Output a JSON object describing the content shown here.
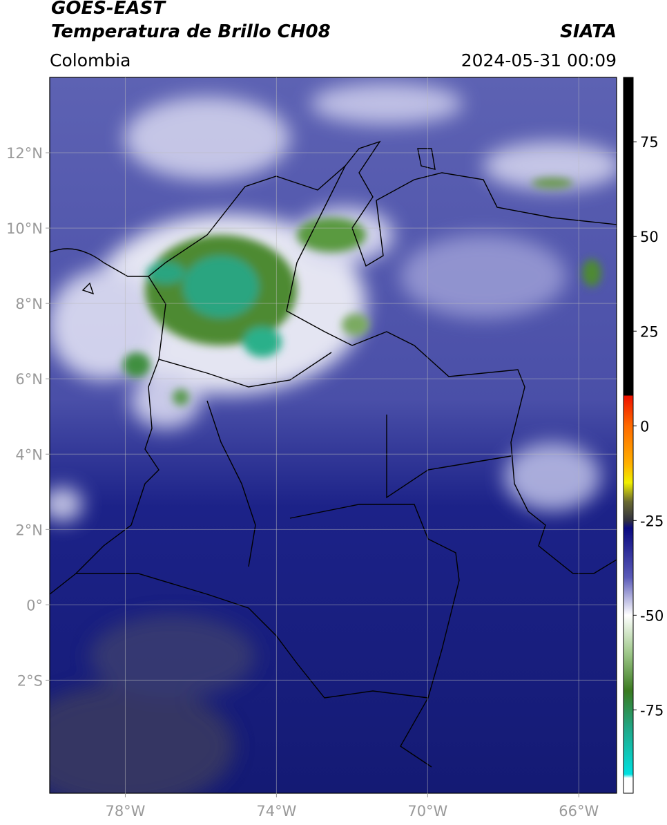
{
  "header": {
    "title": "GOES-EAST",
    "subtitle": "Temperatura de Brillo CH08",
    "source": "SIATA",
    "region": "Colombia",
    "timestamp": "2024-05-31 00:09"
  },
  "map": {
    "xlim": [
      -80,
      -65
    ],
    "ylim": [
      -5,
      14
    ],
    "xticks": [
      {
        "value": -78,
        "label": "78°W"
      },
      {
        "value": -74,
        "label": "74°W"
      },
      {
        "value": -70,
        "label": "70°W"
      },
      {
        "value": -66,
        "label": "66°W"
      }
    ],
    "yticks": [
      {
        "value": 12,
        "label": "12°N"
      },
      {
        "value": 10,
        "label": "10°N"
      },
      {
        "value": 8,
        "label": "8°N"
      },
      {
        "value": 6,
        "label": "6°N"
      },
      {
        "value": 4,
        "label": "4°N"
      },
      {
        "value": 2,
        "label": "2°N"
      },
      {
        "value": 0,
        "label": "0°"
      },
      {
        "value": -2,
        "label": "2°S"
      }
    ],
    "grid": true
  },
  "colorbar": {
    "lim": [
      -97,
      92
    ],
    "ticks": [
      75,
      50,
      25,
      0,
      -25,
      -50,
      -75
    ],
    "stops": [
      {
        "value": 92,
        "color": "#000000"
      },
      {
        "value": 8,
        "color": "#000000"
      },
      {
        "value": 8,
        "color": "#ee1100"
      },
      {
        "value": 0,
        "color": "#ff6a00"
      },
      {
        "value": -10,
        "color": "#ffb000"
      },
      {
        "value": -15,
        "color": "#f0f000"
      },
      {
        "value": -20,
        "color": "#6a6a30"
      },
      {
        "value": -25,
        "color": "#303040"
      },
      {
        "value": -27,
        "color": "#0a0a80"
      },
      {
        "value": -40,
        "color": "#5a5ab8"
      },
      {
        "value": -50,
        "color": "#ffffff"
      },
      {
        "value": -60,
        "color": "#9fc88a"
      },
      {
        "value": -70,
        "color": "#3a7a20"
      },
      {
        "value": -80,
        "color": "#20a888"
      },
      {
        "value": -92,
        "color": "#00e0e0"
      },
      {
        "value": -93,
        "color": "#ffffff"
      },
      {
        "value": -97,
        "color": "#ffffff"
      }
    ]
  }
}
